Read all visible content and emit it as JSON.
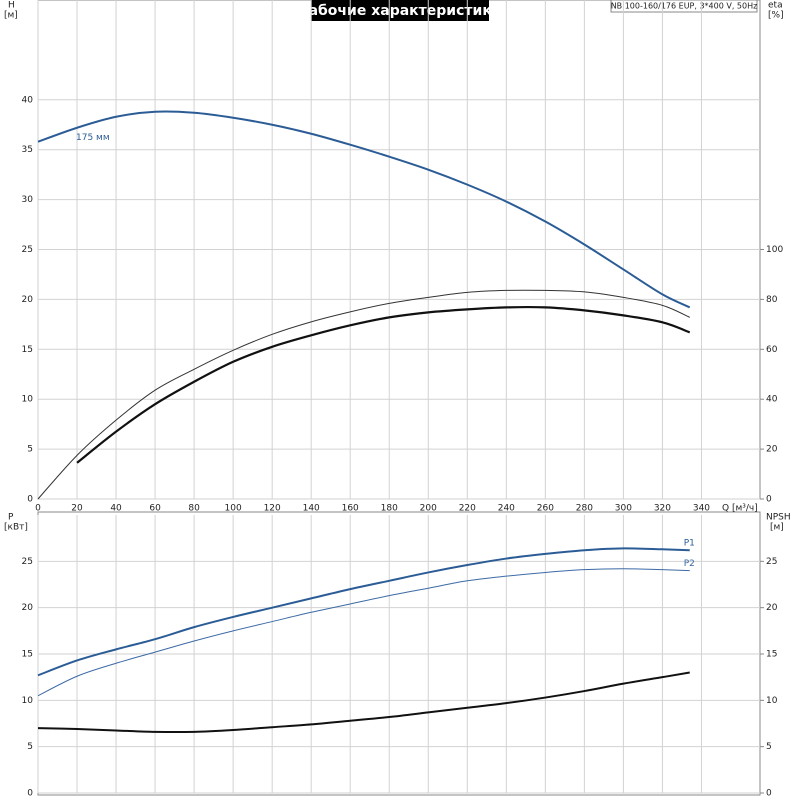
{
  "chart_data": [
    {
      "type": "line",
      "title": "Рабочие характеристики",
      "subtitle": "NB 100-160/176 EUP, 3*400 V, 50Hz",
      "y_label": "H",
      "y_unit": "[м]",
      "y2_label": "eta",
      "y2_unit": "[%]",
      "x_label": "Q [м³/ч]",
      "x": [
        0,
        20,
        40,
        60,
        80,
        100,
        120,
        140,
        160,
        180,
        200,
        220,
        240,
        260,
        280,
        300,
        320,
        334
      ],
      "xlim": [
        0,
        370
      ],
      "xticks": [
        0,
        20,
        40,
        60,
        80,
        100,
        120,
        140,
        160,
        180,
        200,
        220,
        240,
        260,
        280,
        300,
        320,
        340
      ],
      "ylim": [
        0,
        50
      ],
      "yticks": [
        0,
        5,
        10,
        15,
        20,
        25,
        30,
        35,
        40
      ],
      "y2lim": [
        0,
        200
      ],
      "y2ticks": [
        0,
        20,
        40,
        60,
        80,
        100
      ],
      "grid": true,
      "series": [
        {
          "name": "175 мм",
          "color": "#2b5c96",
          "width": 2,
          "values": [
            35.8,
            37.2,
            38.3,
            38.8,
            38.7,
            38.2,
            37.5,
            36.6,
            35.5,
            34.3,
            33.0,
            31.5,
            29.8,
            27.8,
            25.5,
            23.0,
            20.5,
            19.2
          ]
        },
        {
          "color": "#333333",
          "width": 1,
          "axis": "y2",
          "values": [
            0,
            17.5,
            31.6,
            43.6,
            52,
            59.6,
            66,
            71,
            75,
            78.4,
            80.8,
            82.8,
            83.6,
            83.6,
            83,
            80.8,
            77.6,
            72.8
          ]
        },
        {
          "color": "#111111",
          "width": 2.2,
          "axis": "y2",
          "values": [
            null,
            14.5,
            27,
            38,
            47,
            55,
            61,
            65.6,
            69.6,
            72.8,
            74.8,
            76,
            76.8,
            76.8,
            75.6,
            73.6,
            70.8,
            66.8
          ]
        }
      ]
    },
    {
      "type": "line",
      "y_label": "P",
      "y_unit": "[кВт]",
      "y2_label": "NPSH",
      "y2_unit": "[м]",
      "x": [
        0,
        20,
        40,
        60,
        80,
        100,
        120,
        140,
        160,
        180,
        200,
        220,
        240,
        260,
        280,
        300,
        320,
        334
      ],
      "xlim": [
        0,
        370
      ],
      "xticks": [
        0,
        20,
        40,
        60,
        80,
        100,
        120,
        140,
        160,
        180,
        200,
        220,
        240,
        260,
        280,
        300,
        320,
        340
      ],
      "ylim": [
        0,
        30
      ],
      "yticks": [
        0,
        5,
        10,
        15,
        20,
        25
      ],
      "y2lim": [
        0,
        30
      ],
      "y2ticks": [
        0,
        5,
        10,
        15,
        20,
        25
      ],
      "grid": true,
      "series": [
        {
          "name": "P1",
          "color": "#2b5c96",
          "width": 2,
          "values": [
            12.7,
            14.3,
            15.5,
            16.6,
            17.9,
            19.0,
            20.0,
            21.0,
            22.0,
            22.9,
            23.8,
            24.6,
            25.3,
            25.8,
            26.2,
            26.4,
            26.3,
            26.2
          ]
        },
        {
          "name": "P2",
          "color": "#3c6aa5",
          "width": 1,
          "values": [
            10.5,
            12.6,
            14.0,
            15.2,
            16.4,
            17.5,
            18.5,
            19.5,
            20.4,
            21.3,
            22.1,
            22.9,
            23.4,
            23.8,
            24.1,
            24.2,
            24.1,
            24.0
          ]
        },
        {
          "color": "#111111",
          "width": 2,
          "axis": "y2",
          "values": [
            7.0,
            6.9,
            6.75,
            6.6,
            6.6,
            6.8,
            7.1,
            7.4,
            7.8,
            8.2,
            8.7,
            9.2,
            9.7,
            10.3,
            11.0,
            11.8,
            12.5,
            13.0
          ]
        }
      ]
    }
  ]
}
